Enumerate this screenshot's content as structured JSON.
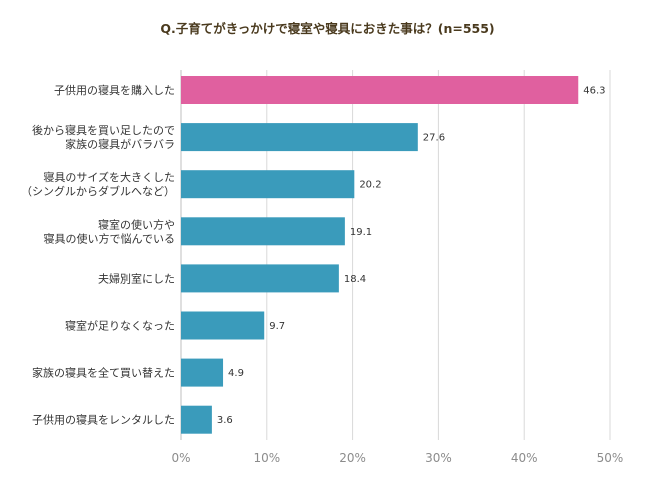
{
  "chart_data": {
    "type": "bar",
    "orientation": "horizontal",
    "title": "Q.子育てがきっかけで寝室や寝具におきた事は？(n=555)",
    "categories": [
      [
        "子供用の寝具を購入した"
      ],
      [
        "後から寝具を買い足したので",
        "家族の寝具がバラバラ"
      ],
      [
        "寝具のサイズを大きくした",
        "（シングルからダブルへなど）"
      ],
      [
        "寝室の使い方や",
        "寝具の使い方で悩んでいる"
      ],
      [
        "夫婦別室にした"
      ],
      [
        "寝室が足りなくなった"
      ],
      [
        "家族の寝具を全て買い替えた"
      ],
      [
        "子供用の寝具をレンタルした"
      ]
    ],
    "values": [
      46.3,
      27.6,
      20.2,
      19.1,
      18.4,
      9.7,
      4.9,
      3.6
    ],
    "value_labels": [
      "46.3",
      "27.6",
      "20.2",
      "19.1",
      "18.4",
      "9.7",
      "4.9",
      "3.6"
    ],
    "xlim": [
      0,
      50
    ],
    "xticks": [
      0,
      10,
      20,
      30,
      40,
      50
    ],
    "xtick_labels": [
      "0%",
      "10%",
      "20%",
      "30%",
      "40%",
      "50%"
    ],
    "grid": true,
    "highlight_index": 0,
    "colors": {
      "highlight": "#e0609f",
      "bar": "#3a9bbb",
      "grid": "#d9d9d9",
      "title": "#4a3a1e"
    }
  }
}
